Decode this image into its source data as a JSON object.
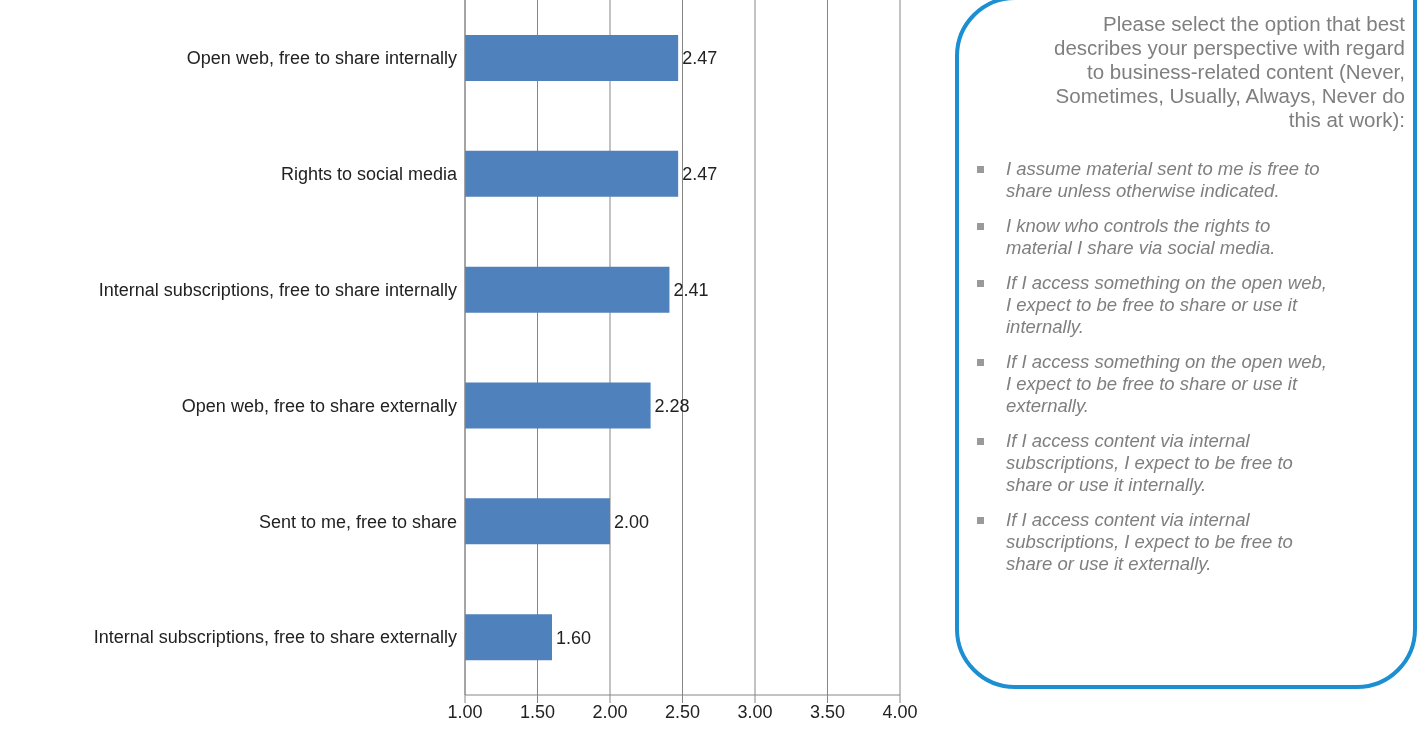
{
  "chart_data": {
    "type": "bar",
    "orientation": "horizontal",
    "categories": [
      "Open web, free to share internally",
      "Rights to social media",
      "Internal subscriptions, free to share internally",
      "Open web, free to share externally",
      "Sent to me, free to share",
      "Internal subscriptions, free to share externally"
    ],
    "values": [
      2.47,
      2.47,
      2.41,
      2.28,
      2.0,
      1.6
    ],
    "value_labels": [
      "2.47",
      "2.47",
      "2.41",
      "2.28",
      "2.00",
      "1.60"
    ],
    "color": "#4f81bd",
    "xlim": [
      1,
      4
    ],
    "xticks": [
      {
        "value": 1,
        "label": "1.00"
      },
      {
        "value": 1.5,
        "label": "1.50"
      },
      {
        "value": 2,
        "label": "2.00"
      },
      {
        "value": 2.5,
        "label": "2.50"
      },
      {
        "value": 3,
        "label": "3.00"
      },
      {
        "value": 3.5,
        "label": "3.50"
      },
      {
        "value": 4,
        "label": "4.00"
      }
    ],
    "grid": "x",
    "legend": false,
    "annotations": [
      "Please select the option that best describes your perspective with regard to business-related content (Never, Sometimes, Usually, Always, Never do this at work):",
      "I assume material sent to me is free to share unless otherwise indicated.",
      "I know who controls the rights to material I share via social media.",
      "If I access something on the open web, I expect to be free to share or use it internally.",
      "If I access something on the open web, I expect to be free to share or use it externally.",
      "If I access content via internal subscriptions, I expect to be free to share or use it internally.",
      "If I access content via internal subscriptions, I expect to be free to share or use it externally."
    ]
  }
}
